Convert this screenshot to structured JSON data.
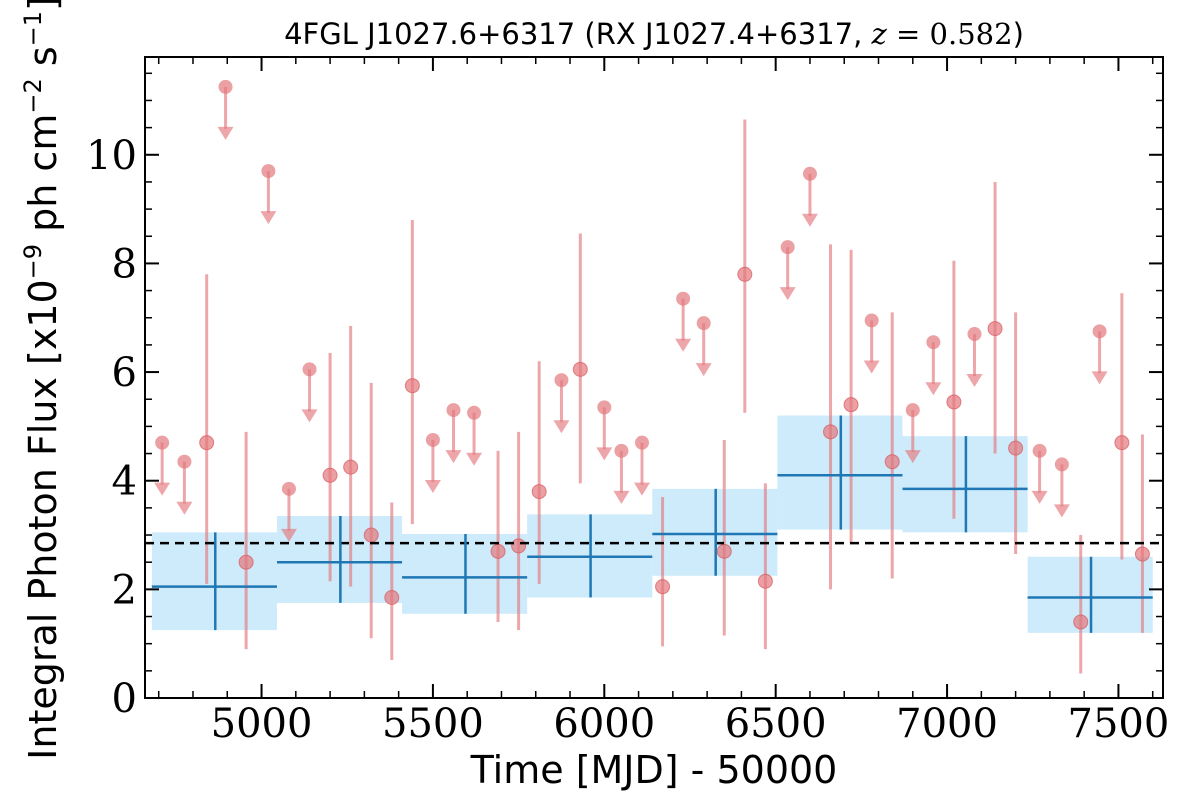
{
  "chart_data": {
    "type": "scatter",
    "title": "4FGL J1027.6+6317 (RX J1027.4+6317, z = 0.582)",
    "xlabel": "Time [MJD] - 50000",
    "ylabel": "Integral Photon Flux [x10⁻⁹ ph cm⁻² s⁻¹]",
    "xlim": [
      4660,
      7630
    ],
    "ylim": [
      0,
      11.8
    ],
    "xticks": [
      5000,
      5500,
      6000,
      6500,
      7000,
      7500
    ],
    "yticks": [
      0,
      2,
      4,
      6,
      8,
      10
    ],
    "grid": false,
    "mean_flux": 2.85,
    "colors": {
      "detections": "#e3787c",
      "upper_limits": "#e3787c",
      "binned_band": "#cdebfb",
      "binned_line": "#1f77b4",
      "mean_line": "#000000"
    },
    "series": [
      {
        "type": "detections",
        "x": [
          4840,
          4955,
          5200,
          5260,
          5320,
          5380,
          5440,
          5690,
          5750,
          5810,
          5930,
          6170,
          6350,
          6410,
          6470,
          6660,
          6720,
          6840,
          7020,
          7140,
          7200,
          7390,
          7510,
          7570
        ],
        "y": [
          4.7,
          2.5,
          4.1,
          4.25,
          3.0,
          1.85,
          5.75,
          2.7,
          2.8,
          3.8,
          6.05,
          2.05,
          2.7,
          7.8,
          2.15,
          4.9,
          5.4,
          4.35,
          5.45,
          6.8,
          4.6,
          1.4,
          4.7,
          2.65
        ],
        "ylow": [
          2.1,
          0.9,
          2.15,
          2.05,
          1.1,
          0.7,
          3.2,
          1.4,
          1.25,
          2.1,
          3.95,
          0.95,
          1.15,
          5.25,
          0.9,
          2.0,
          2.85,
          2.2,
          3.3,
          4.5,
          2.65,
          0.45,
          2.55,
          1.2
        ],
        "yhigh": [
          7.8,
          4.9,
          6.35,
          6.85,
          5.8,
          3.6,
          8.8,
          4.55,
          4.9,
          6.2,
          8.55,
          3.7,
          4.75,
          10.65,
          3.95,
          8.35,
          8.25,
          7.1,
          8.05,
          9.5,
          7.1,
          3.0,
          7.45,
          4.85
        ]
      },
      {
        "type": "upper_limits",
        "x": [
          4710,
          4775,
          4895,
          5020,
          5080,
          5140,
          5500,
          5560,
          5620,
          5875,
          6000,
          6050,
          6110,
          6230,
          6290,
          6535,
          6600,
          6780,
          6900,
          6960,
          7080,
          7270,
          7335,
          7445
        ],
        "y": [
          4.7,
          4.35,
          11.25,
          9.7,
          3.85,
          6.05,
          4.75,
          5.3,
          5.25,
          5.85,
          5.35,
          4.55,
          4.7,
          7.35,
          6.9,
          8.3,
          9.65,
          6.95,
          5.3,
          6.55,
          6.7,
          4.55,
          4.3,
          6.75
        ]
      },
      {
        "type": "binned",
        "x": [
          4865,
          5230,
          5595,
          5960,
          6325,
          6690,
          7055,
          7420
        ],
        "xlow": [
          4680,
          5045,
          5410,
          5775,
          6140,
          6505,
          6870,
          7235
        ],
        "xhigh": [
          5045,
          5410,
          5775,
          6140,
          6505,
          6870,
          7235,
          7600
        ],
        "y": [
          2.05,
          2.5,
          2.22,
          2.6,
          3.02,
          4.1,
          3.85,
          1.85
        ],
        "ylow": [
          1.25,
          1.75,
          1.55,
          1.85,
          2.25,
          3.1,
          3.05,
          1.2
        ],
        "yhigh": [
          3.05,
          3.35,
          3.02,
          3.38,
          3.85,
          5.2,
          4.82,
          2.6
        ]
      }
    ]
  },
  "display": {
    "title_prefix": "4FGL J1027.6+6317 (RX J1027.4+6317, ",
    "title_z": "z",
    "title_eq": " = 0.582",
    "title_suffix": ")",
    "xlabel": "Time [MJD] - 50000",
    "ylabel_a": "Integral Photon Flux [x10",
    "ylabel_exp1": "−9",
    "ylabel_b": " ph cm",
    "ylabel_exp2": "−2",
    "ylabel_c": " s",
    "ylabel_exp3": "−1",
    "ylabel_d": "]"
  }
}
